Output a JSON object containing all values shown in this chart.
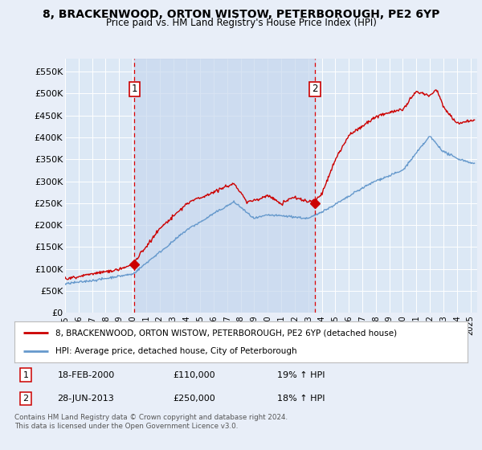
{
  "title": "8, BRACKENWOOD, ORTON WISTOW, PETERBOROUGH, PE2 6YP",
  "subtitle": "Price paid vs. HM Land Registry's House Price Index (HPI)",
  "ylabel_ticks": [
    "£0",
    "£50K",
    "£100K",
    "£150K",
    "£200K",
    "£250K",
    "£300K",
    "£350K",
    "£400K",
    "£450K",
    "£500K",
    "£550K"
  ],
  "ytick_values": [
    0,
    50000,
    100000,
    150000,
    200000,
    250000,
    300000,
    350000,
    400000,
    450000,
    500000,
    550000
  ],
  "ylim": [
    0,
    580000
  ],
  "xlim_start": 1995.0,
  "xlim_end": 2025.5,
  "bg_color": "#e8eef8",
  "plot_bg_color": "#dce8f5",
  "grid_color": "#ffffff",
  "red_line_color": "#cc0000",
  "blue_line_color": "#6699cc",
  "shaded_region_color": "#c8d8ee",
  "transaction1_x": 2000.13,
  "transaction1_price": 110000,
  "transaction1_date": "18-FEB-2000",
  "transaction1_hpi": "19% ↑ HPI",
  "transaction1_price_str": "£110,000",
  "transaction2_x": 2013.49,
  "transaction2_price": 250000,
  "transaction2_date": "28-JUN-2013",
  "transaction2_hpi": "18% ↑ HPI",
  "transaction2_price_str": "£250,000",
  "legend_line1": "8, BRACKENWOOD, ORTON WISTOW, PETERBOROUGH, PE2 6YP (detached house)",
  "legend_line2": "HPI: Average price, detached house, City of Peterborough",
  "footnote": "Contains HM Land Registry data © Crown copyright and database right 2024.\nThis data is licensed under the Open Government Licence v3.0.",
  "xtick_years": [
    1995,
    1996,
    1997,
    1998,
    1999,
    2000,
    2001,
    2002,
    2003,
    2004,
    2005,
    2006,
    2007,
    2008,
    2009,
    2010,
    2011,
    2012,
    2013,
    2014,
    2015,
    2016,
    2017,
    2018,
    2019,
    2020,
    2021,
    2022,
    2023,
    2024,
    2025
  ]
}
